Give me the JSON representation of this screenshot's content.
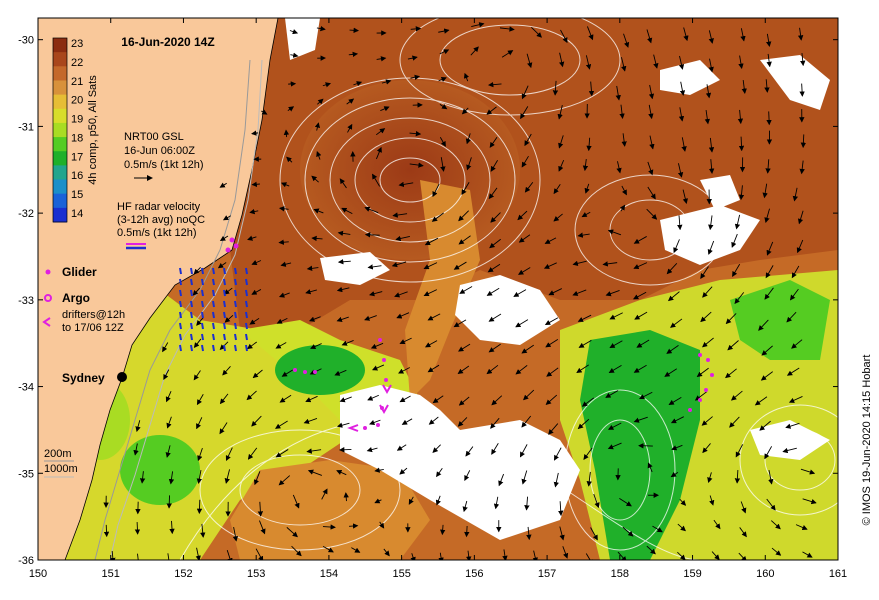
{
  "map": {
    "title": "16-Jun-2020 14Z",
    "credit": "© IMOS 19-Jun-2020 14:15 Hobart",
    "lon_ticks": [
      "150",
      "151",
      "152",
      "153",
      "154",
      "155",
      "156",
      "157",
      "158",
      "159",
      "160",
      "161"
    ],
    "lat_ticks": [
      "-30",
      "-31",
      "-32",
      "-33",
      "-34",
      "-35",
      "-36"
    ],
    "lon_range": [
      150,
      161
    ],
    "lat_range": [
      -36,
      -29.75
    ],
    "colorbar": {
      "ticks": [
        "23",
        "22",
        "21",
        "20",
        "19",
        "18",
        "17",
        "16",
        "15",
        "14"
      ],
      "label": "4h comp, p50, All Sats",
      "colors": [
        "#8b2c10",
        "#a9461b",
        "#c4682a",
        "#d8913a",
        "#e6bd35",
        "#d8dd2a",
        "#a9dc23",
        "#55cc22",
        "#1fb02a",
        "#22a58d",
        "#1b8fc9",
        "#1a62d8",
        "#1a2fd0"
      ]
    },
    "legend": {
      "gsl_line1": "NRT00 GSL",
      "gsl_line2": "16-Jun 06:00Z",
      "gsl_line3": "0.5m/s (1kt 12h)",
      "hf_line1": "HF radar velocity",
      "hf_line2": "(3-12h avg) noQC",
      "hf_line3": "0.5m/s (1kt 12h)",
      "glider": "Glider",
      "argo": "Argo",
      "drifters_line1": "drifters@12h",
      "drifters_line2": "to 17/06 12Z",
      "depth1": "200m",
      "depth2": "1000m"
    },
    "place": "Sydney",
    "colors": {
      "land": "#f9c89a",
      "warm": "#b1521c",
      "mid": "#d88a2f",
      "cool": "#cfd92c",
      "cold": "#1faf2a",
      "cloud": "#ffffff",
      "glider": "#e020e0",
      "hf": "#1a2fd0"
    }
  }
}
